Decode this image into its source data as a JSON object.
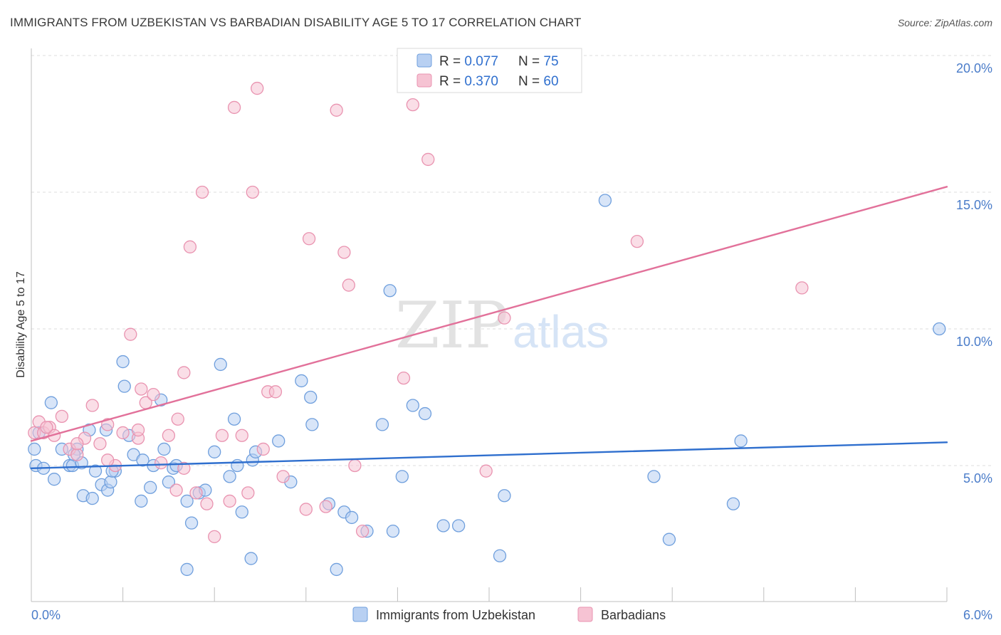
{
  "header": {
    "title": "IMMIGRANTS FROM UZBEKISTAN VS BARBADIAN DISABILITY AGE 5 TO 17 CORRELATION CHART",
    "source": "Source: ZipAtlas.com"
  },
  "watermark": {
    "zip": "ZIP",
    "atlas": "atlas"
  },
  "colors": {
    "blue_fill": "#b8d0f2",
    "blue_stroke": "#6f9fdd",
    "blue_line": "#2f6fce",
    "pink_fill": "#f6c3d3",
    "pink_stroke": "#e993b0",
    "pink_line": "#e2719a"
  },
  "legend": {
    "rows": [
      {
        "r_label": "R = ",
        "r_value": "0.077",
        "n_label": "N = ",
        "n_value": "75"
      },
      {
        "r_label": "R = ",
        "r_value": "0.370",
        "n_label": "N = ",
        "n_value": "60"
      }
    ]
  },
  "chart_data": {
    "type": "scatter",
    "title": "IMMIGRANTS FROM UZBEKISTAN VS BARBADIAN DISABILITY AGE 5 TO 17 CORRELATION CHART",
    "xlabel": "",
    "ylabel": "Disability Age 5 to 17",
    "xlim": [
      0,
      6
    ],
    "ylim": [
      0,
      20
    ],
    "x_tick_labels": [
      "0.0%",
      "6.0%"
    ],
    "y_ticks": [
      5,
      10,
      15,
      20
    ],
    "y_tick_labels": [
      "5.0%",
      "10.0%",
      "15.0%",
      "20.0%"
    ],
    "grid": true,
    "legend_position": "top-center",
    "series": [
      {
        "name": "Immigrants from Uzbekistan",
        "color": "#6f9fdd",
        "trend": {
          "x": [
            0,
            6
          ],
          "y": [
            4.9,
            5.85
          ]
        },
        "points": [
          [
            0.02,
            5.6
          ],
          [
            0.03,
            5.0
          ],
          [
            0.05,
            6.2
          ],
          [
            0.08,
            4.9
          ],
          [
            0.13,
            7.3
          ],
          [
            0.15,
            4.5
          ],
          [
            0.2,
            5.6
          ],
          [
            0.25,
            5.0
          ],
          [
            0.27,
            5.0
          ],
          [
            0.3,
            5.6
          ],
          [
            0.33,
            5.1
          ],
          [
            0.34,
            3.9
          ],
          [
            0.4,
            3.8
          ],
          [
            0.42,
            4.8
          ],
          [
            0.46,
            4.3
          ],
          [
            0.49,
            6.3
          ],
          [
            0.5,
            4.1
          ],
          [
            0.52,
            4.4
          ],
          [
            0.55,
            4.8
          ],
          [
            0.6,
            8.8
          ],
          [
            0.61,
            7.9
          ],
          [
            0.64,
            6.1
          ],
          [
            0.67,
            5.4
          ],
          [
            0.72,
            3.7
          ],
          [
            0.73,
            5.2
          ],
          [
            0.78,
            4.2
          ],
          [
            0.8,
            5.0
          ],
          [
            0.85,
            7.4
          ],
          [
            0.87,
            5.6
          ],
          [
            0.9,
            4.4
          ],
          [
            0.93,
            4.9
          ],
          [
            0.95,
            5.0
          ],
          [
            1.02,
            3.7
          ],
          [
            1.05,
            2.9
          ],
          [
            1.1,
            4.0
          ],
          [
            1.14,
            4.1
          ],
          [
            1.2,
            5.5
          ],
          [
            1.24,
            8.7
          ],
          [
            1.3,
            4.6
          ],
          [
            1.33,
            6.7
          ],
          [
            1.35,
            5.0
          ],
          [
            1.38,
            3.3
          ],
          [
            1.45,
            5.2
          ],
          [
            1.47,
            5.5
          ],
          [
            1.62,
            5.9
          ],
          [
            1.7,
            4.4
          ],
          [
            1.77,
            8.1
          ],
          [
            1.83,
            7.5
          ],
          [
            1.84,
            6.5
          ],
          [
            1.95,
            3.6
          ],
          [
            2.05,
            3.3
          ],
          [
            2.1,
            3.1
          ],
          [
            2.2,
            2.6
          ],
          [
            2.3,
            6.5
          ],
          [
            2.35,
            11.4
          ],
          [
            2.37,
            2.6
          ],
          [
            2.43,
            4.6
          ],
          [
            2.5,
            7.2
          ],
          [
            2.58,
            6.9
          ],
          [
            2.7,
            2.8
          ],
          [
            2.8,
            2.8
          ],
          [
            3.07,
            1.7
          ],
          [
            3.1,
            3.9
          ],
          [
            3.76,
            14.7
          ],
          [
            4.08,
            4.6
          ],
          [
            4.18,
            2.3
          ],
          [
            4.6,
            3.6
          ],
          [
            4.65,
            5.9
          ],
          [
            5.95,
            10.0
          ],
          [
            1.02,
            1.2
          ],
          [
            1.44,
            1.6
          ],
          [
            2.0,
            1.2
          ],
          [
            0.53,
            4.8
          ],
          [
            0.38,
            6.3
          ],
          [
            0.28,
            5.4
          ]
        ]
      },
      {
        "name": "Barbadians",
        "color": "#e993b0",
        "trend": {
          "x": [
            0,
            6
          ],
          "y": [
            5.9,
            15.2
          ]
        },
        "points": [
          [
            0.02,
            6.2
          ],
          [
            0.05,
            6.6
          ],
          [
            0.08,
            6.2
          ],
          [
            0.12,
            6.4
          ],
          [
            0.15,
            6.1
          ],
          [
            0.2,
            6.8
          ],
          [
            0.25,
            5.6
          ],
          [
            0.3,
            5.4
          ],
          [
            0.35,
            6.0
          ],
          [
            0.4,
            7.2
          ],
          [
            0.45,
            5.8
          ],
          [
            0.5,
            6.5
          ],
          [
            0.55,
            5.0
          ],
          [
            0.6,
            6.2
          ],
          [
            0.65,
            9.8
          ],
          [
            0.7,
            6.0
          ],
          [
            0.72,
            7.8
          ],
          [
            0.75,
            7.3
          ],
          [
            0.8,
            7.6
          ],
          [
            0.85,
            5.1
          ],
          [
            0.9,
            6.1
          ],
          [
            0.95,
            4.1
          ],
          [
            0.96,
            6.7
          ],
          [
            1.0,
            8.4
          ],
          [
            1.04,
            13.0
          ],
          [
            1.08,
            4.0
          ],
          [
            1.12,
            15.0
          ],
          [
            1.15,
            3.6
          ],
          [
            1.2,
            2.4
          ],
          [
            1.25,
            6.1
          ],
          [
            1.3,
            3.7
          ],
          [
            1.33,
            18.1
          ],
          [
            1.38,
            6.1
          ],
          [
            1.42,
            4.0
          ],
          [
            1.45,
            15.0
          ],
          [
            1.48,
            18.8
          ],
          [
            1.52,
            5.6
          ],
          [
            1.55,
            7.7
          ],
          [
            1.6,
            7.7
          ],
          [
            1.65,
            4.6
          ],
          [
            1.8,
            3.4
          ],
          [
            1.82,
            13.3
          ],
          [
            1.93,
            3.5
          ],
          [
            2.0,
            18.0
          ],
          [
            2.05,
            12.8
          ],
          [
            2.08,
            11.6
          ],
          [
            2.12,
            5.0
          ],
          [
            2.17,
            2.6
          ],
          [
            2.44,
            8.2
          ],
          [
            2.5,
            18.2
          ],
          [
            2.6,
            16.2
          ],
          [
            2.98,
            4.8
          ],
          [
            3.1,
            10.4
          ],
          [
            3.97,
            13.2
          ],
          [
            5.05,
            11.5
          ],
          [
            0.1,
            6.4
          ],
          [
            0.3,
            5.8
          ],
          [
            0.5,
            5.2
          ],
          [
            0.7,
            6.3
          ],
          [
            1.0,
            4.9
          ]
        ]
      }
    ]
  },
  "bottom_legend": {
    "items": [
      {
        "label": "Immigrants from Uzbekistan"
      },
      {
        "label": "Barbadians"
      }
    ]
  }
}
